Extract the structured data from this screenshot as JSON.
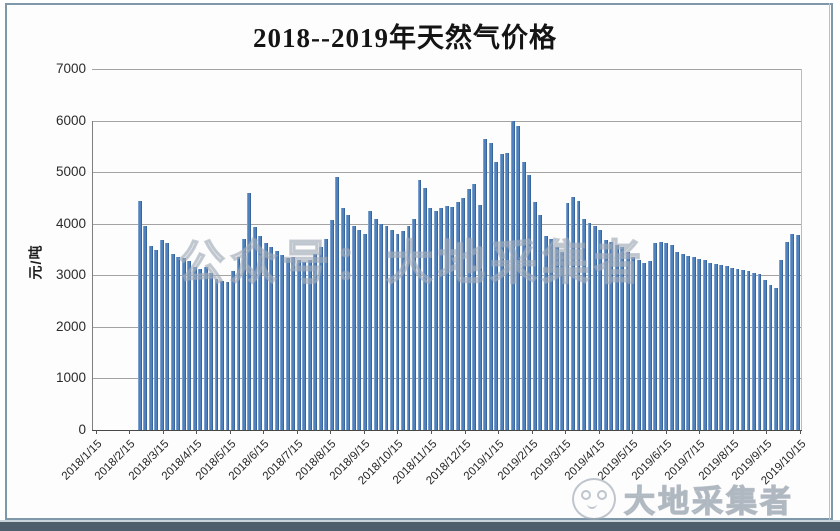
{
  "title": "2018--2019年天然气价格",
  "watermarks": {
    "center": "公众号：大地采集者",
    "corner": "大地采集者"
  },
  "frame": {
    "border_color": "#7E98AA",
    "footer_band_color": "#4E5E6A"
  },
  "chart_data": {
    "type": "bar",
    "title": "2018--2019年天然气价格",
    "xlabel": "",
    "ylabel": "元/吨",
    "ylim": [
      0,
      7000
    ],
    "ytick_step": 1000,
    "ytick_labels": [
      "7000",
      "6000",
      "5000",
      "4000",
      "3000",
      "2000",
      "1000",
      "0"
    ],
    "xtick_labels": [
      "2018/1/15",
      "2018/2/15",
      "2018/3/15",
      "2018/4/15",
      "2018/5/15",
      "2018/6/15",
      "2018/7/15",
      "2018/8/15",
      "2018/9/15",
      "2018/10/15",
      "2018/11/15",
      "2018/12/15",
      "2019/1/15",
      "2019/2/15",
      "2019/3/15",
      "2019/4/15",
      "2019/5/15",
      "2019/6/15",
      "2019/7/15",
      "2019/8/15",
      "2019/9/15",
      "2019/10/15"
    ],
    "grid": "horizontal",
    "legend": "none",
    "bar_color": "#4F81BD",
    "series_start_fraction": 0.063,
    "values": [
      4450,
      3950,
      3560,
      3500,
      3690,
      3630,
      3420,
      3350,
      3340,
      3280,
      3160,
      3130,
      3170,
      3050,
      2930,
      2890,
      2870,
      3080,
      3350,
      3700,
      4600,
      3930,
      3760,
      3620,
      3550,
      3480,
      3400,
      3330,
      3360,
      3300,
      3250,
      3300,
      3420,
      3550,
      3700,
      4080,
      4900,
      4310,
      4160,
      3950,
      3870,
      3800,
      4250,
      4100,
      4000,
      3950,
      3880,
      3800,
      3850,
      3950,
      4100,
      4850,
      4700,
      4300,
      4250,
      4300,
      4350,
      4320,
      4420,
      4500,
      4680,
      4780,
      4360,
      5650,
      5570,
      5200,
      5360,
      5380,
      6000,
      5900,
      5190,
      4950,
      4430,
      4170,
      3760,
      3700,
      3550,
      3460,
      4400,
      4520,
      4450,
      4100,
      4020,
      3960,
      3880,
      3690,
      3650,
      3590,
      3550,
      3460,
      3360,
      3300,
      3240,
      3280,
      3620,
      3650,
      3630,
      3590,
      3450,
      3420,
      3380,
      3350,
      3320,
      3300,
      3240,
      3220,
      3200,
      3180,
      3150,
      3120,
      3100,
      3080,
      3050,
      3020,
      2900,
      2820,
      2760,
      3300,
      3650,
      3800,
      3780
    ]
  }
}
